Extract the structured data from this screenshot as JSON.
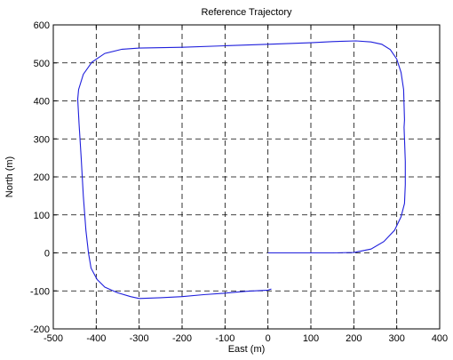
{
  "chart_data": {
    "type": "line",
    "title": "Reference Trajectory",
    "xlabel": "East (m)",
    "ylabel": "North (m)",
    "xlim": [
      -500,
      400
    ],
    "ylim": [
      -200,
      600
    ],
    "grid": true,
    "xticks": [
      -500,
      -400,
      -300,
      -200,
      -100,
      0,
      100,
      200,
      300,
      400
    ],
    "yticks": [
      -200,
      -100,
      0,
      100,
      200,
      300,
      400,
      500,
      600
    ],
    "series": [
      {
        "color": "#1f1fdc",
        "x": [
          0,
          50,
          100,
          150,
          200,
          240,
          270,
          295,
          310,
          318,
          320,
          320,
          318,
          317,
          318,
          316,
          310,
          300,
          285,
          265,
          240,
          205,
          150,
          100,
          0,
          -100,
          -200,
          -300,
          -340,
          -380,
          -410,
          -430,
          -441,
          -443,
          -440,
          -435,
          -430,
          -424,
          -418,
          -412,
          -398,
          -380,
          -350,
          -320,
          -300,
          -250,
          -200,
          -150,
          -100,
          -50,
          0,
          8
        ],
        "y": [
          0,
          0,
          0,
          0,
          1,
          10,
          30,
          60,
          95,
          130,
          180,
          240,
          300,
          330,
          350,
          430,
          475,
          510,
          535,
          549,
          555,
          558,
          556,
          553,
          549,
          545,
          541,
          539,
          536,
          525,
          502,
          470,
          430,
          405,
          340,
          250,
          150,
          60,
          0,
          -40,
          -70,
          -90,
          -105,
          -115,
          -120,
          -118,
          -115,
          -110,
          -106,
          -101,
          -98,
          -95
        ]
      }
    ]
  }
}
